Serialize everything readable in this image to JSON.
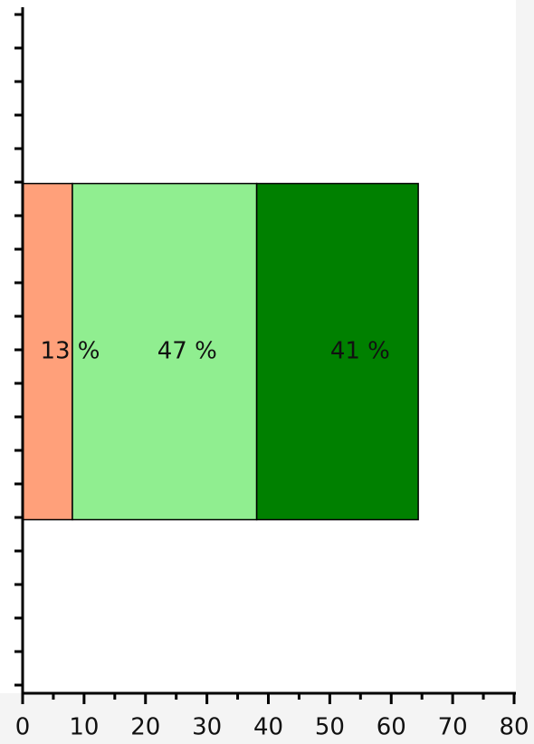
{
  "chart_data": {
    "type": "stacked-bar-horizontal",
    "categories": [
      null
    ],
    "series": [
      {
        "color": "#ffa07a",
        "values": [
          8.1
        ],
        "value_labels": [
          "13 %"
        ]
      },
      {
        "color": "#90ee90",
        "values": [
          30
        ],
        "value_labels": [
          "47 %"
        ]
      },
      {
        "color": "#008000",
        "values": [
          26.3
        ],
        "value_labels": [
          "41 %"
        ]
      }
    ],
    "xlim": [
      0,
      80
    ],
    "xticks": [
      0,
      10,
      20,
      30,
      40,
      50,
      60,
      70,
      80
    ]
  }
}
